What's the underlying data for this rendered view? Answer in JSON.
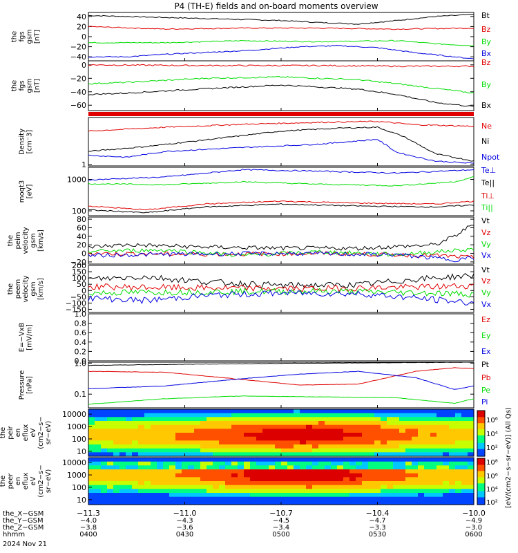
{
  "title": "P4 (TH-E) fields and on-board moments overview",
  "colors": {
    "black": "#000000",
    "red": "#e00000",
    "green": "#00dd00",
    "blue": "#0000e0"
  },
  "chart_data": [
    {
      "type": "line",
      "ylabel": [
        "the",
        "fgs",
        "gsm",
        "[nT]"
      ],
      "ylim": [
        -48,
        48
      ],
      "yticks": [
        "40",
        "20",
        "0",
        "−20",
        "−40"
      ],
      "ytick_values": [
        40,
        20,
        0,
        -20,
        -40
      ],
      "series": [
        {
          "name": "Bt",
          "color": "#000000",
          "points": [
            [
              0,
              42
            ],
            [
              0.1,
              40
            ],
            [
              0.3,
              36
            ],
            [
              0.5,
              32
            ],
            [
              0.6,
              28
            ],
            [
              0.7,
              25
            ],
            [
              0.8,
              32
            ],
            [
              0.9,
              40
            ],
            [
              1,
              44
            ]
          ]
        },
        {
          "name": "Bz",
          "color": "#e00000",
          "points": [
            [
              0,
              20
            ],
            [
              0.2,
              15
            ],
            [
              0.4,
              17
            ],
            [
              0.6,
              17
            ],
            [
              0.8,
              15
            ],
            [
              1,
              17
            ]
          ]
        },
        {
          "name": "By",
          "color": "#00dd00",
          "points": [
            [
              0,
              -12
            ],
            [
              0.2,
              -12
            ],
            [
              0.4,
              -8
            ],
            [
              0.6,
              -10
            ],
            [
              0.8,
              -8
            ],
            [
              0.9,
              -14
            ],
            [
              1,
              -18
            ]
          ]
        },
        {
          "name": "Bx",
          "color": "#0000e0",
          "points": [
            [
              0,
              -40
            ],
            [
              0.1,
              -40
            ],
            [
              0.2,
              -35
            ],
            [
              0.4,
              -28
            ],
            [
              0.55,
              -20
            ],
            [
              0.65,
              -18
            ],
            [
              0.75,
              -22
            ],
            [
              0.85,
              -32
            ],
            [
              0.95,
              -40
            ],
            [
              1,
              -44
            ]
          ]
        }
      ]
    },
    {
      "type": "line",
      "ylabel": [
        "the",
        "fgs",
        "gsm",
        "[nT]"
      ],
      "ylim": [
        -68,
        6
      ],
      "yticks": [
        "0",
        "−20",
        "−40",
        "−60"
      ],
      "ytick_values": [
        0,
        -20,
        -40,
        -60
      ],
      "series": [
        {
          "name": "Bz",
          "color": "#e00000",
          "points": [
            [
              0,
              0
            ],
            [
              0.3,
              -1
            ],
            [
              0.6,
              -1
            ],
            [
              0.8,
              -2
            ],
            [
              1,
              -2
            ]
          ]
        },
        {
          "name": "By",
          "color": "#00dd00",
          "points": [
            [
              0,
              -28
            ],
            [
              0.1,
              -26
            ],
            [
              0.3,
              -20
            ],
            [
              0.5,
              -18
            ],
            [
              0.7,
              -22
            ],
            [
              0.8,
              -28
            ],
            [
              0.9,
              -35
            ],
            [
              1,
              -42
            ]
          ]
        },
        {
          "name": "Bx",
          "color": "#000000",
          "points": [
            [
              0,
              -44
            ],
            [
              0.1,
              -42
            ],
            [
              0.25,
              -37
            ],
            [
              0.5,
              -30
            ],
            [
              0.7,
              -36
            ],
            [
              0.8,
              -44
            ],
            [
              0.9,
              -56
            ],
            [
              1,
              -62
            ]
          ]
        }
      ]
    },
    {
      "type": "line",
      "ylabel": [
        "Density",
        "[cm⁻3]"
      ],
      "ylim": [
        0,
        1
      ],
      "yticks": [
        "1"
      ],
      "ytick_values": [
        0.03
      ],
      "series": [
        {
          "name": "Ne",
          "color": "#e00000",
          "points": [
            [
              0,
              0.72
            ],
            [
              0.2,
              0.8
            ],
            [
              0.4,
              0.86
            ],
            [
              0.6,
              0.9
            ],
            [
              0.75,
              0.92
            ],
            [
              0.85,
              0.85
            ],
            [
              1,
              0.82
            ]
          ]
        },
        {
          "name": "Ni",
          "color": "#000000",
          "points": [
            [
              0,
              0.3
            ],
            [
              0.15,
              0.4
            ],
            [
              0.35,
              0.58
            ],
            [
              0.5,
              0.72
            ],
            [
              0.65,
              0.78
            ],
            [
              0.75,
              0.8
            ],
            [
              0.82,
              0.6
            ],
            [
              0.9,
              0.25
            ],
            [
              1,
              0.1
            ]
          ]
        },
        {
          "name": "Npot",
          "color": "#0000e0",
          "points": [
            [
              0,
              0.22
            ],
            [
              0.1,
              0.18
            ],
            [
              0.2,
              0.3
            ],
            [
              0.4,
              0.38
            ],
            [
              0.6,
              0.45
            ],
            [
              0.75,
              0.55
            ],
            [
              0.8,
              0.28
            ],
            [
              0.9,
              0.1
            ],
            [
              1,
              0.05
            ]
          ]
        }
      ]
    },
    {
      "type": "line",
      "ylabel": [
        "moqt3",
        "[eV]"
      ],
      "ylim": [
        0,
        1
      ],
      "yticks": [
        "1000",
        "100"
      ],
      "ytick_values": [
        0.75,
        0.1
      ],
      "series": [
        {
          "name": "Te⊥",
          "color": "#0000e0",
          "points": [
            [
              0,
              0.74
            ],
            [
              0.2,
              0.8
            ],
            [
              0.4,
              0.95
            ],
            [
              0.6,
              0.92
            ],
            [
              0.8,
              0.88
            ],
            [
              1,
              0.95
            ]
          ]
        },
        {
          "name": "Te||",
          "color": "#000000",
          "points": [
            [
              0,
              0.12
            ],
            [
              0.15,
              0.06
            ],
            [
              0.3,
              0.18
            ],
            [
              0.5,
              0.24
            ],
            [
              0.7,
              0.2
            ],
            [
              0.9,
              0.18
            ],
            [
              1,
              0.22
            ]
          ]
        },
        {
          "name": "Ti⊥",
          "color": "#e00000",
          "points": [
            [
              0,
              0.2
            ],
            [
              0.15,
              0.12
            ],
            [
              0.3,
              0.24
            ],
            [
              0.5,
              0.3
            ],
            [
              0.7,
              0.26
            ],
            [
              0.9,
              0.24
            ],
            [
              1,
              0.3
            ]
          ]
        },
        {
          "name": "Ti||",
          "color": "#00dd00",
          "points": [
            [
              0,
              0.66
            ],
            [
              0.2,
              0.64
            ],
            [
              0.4,
              0.7
            ],
            [
              0.6,
              0.65
            ],
            [
              0.8,
              0.62
            ],
            [
              0.95,
              0.7
            ],
            [
              1,
              0.8
            ]
          ]
        }
      ]
    },
    {
      "type": "line",
      "ylabel": [
        "the",
        "peim",
        "velocity",
        "gsm",
        "[km/s]"
      ],
      "ylim": [
        -25,
        85
      ],
      "yticks": [
        "80",
        "60",
        "40",
        "20",
        "0",
        "−20"
      ],
      "ytick_values": [
        80,
        60,
        40,
        20,
        0,
        -20
      ],
      "series": [
        {
          "name": "Vt",
          "color": "#000000",
          "points": [
            [
              0,
              15
            ],
            [
              0.1,
              20
            ],
            [
              0.3,
              15
            ],
            [
              0.5,
              12
            ],
            [
              0.7,
              12
            ],
            [
              0.9,
              20
            ],
            [
              0.95,
              40
            ],
            [
              1,
              70
            ]
          ]
        },
        {
          "name": "Vz",
          "color": "#e00000",
          "points": [
            [
              0,
              0
            ],
            [
              0.3,
              -2
            ],
            [
              0.6,
              0
            ],
            [
              0.9,
              -5
            ],
            [
              1,
              -10
            ]
          ]
        },
        {
          "name": "Vy",
          "color": "#00dd00",
          "points": [
            [
              0,
              5
            ],
            [
              0.2,
              8
            ],
            [
              0.4,
              -5
            ],
            [
              0.6,
              4
            ],
            [
              0.8,
              -3
            ],
            [
              1,
              10
            ]
          ]
        },
        {
          "name": "Vx",
          "color": "#0000e0",
          "points": [
            [
              0,
              -5
            ],
            [
              0.2,
              -2
            ],
            [
              0.5,
              0
            ],
            [
              0.8,
              -3
            ],
            [
              0.95,
              -15
            ],
            [
              1,
              -10
            ]
          ]
        }
      ]
    },
    {
      "type": "line",
      "ylabel": [
        "the",
        "peem",
        "velocity",
        "gsm",
        "[km/s]"
      ],
      "ylim": [
        -175,
        200
      ],
      "yticks": [
        "200",
        "150",
        "100",
        "50",
        "0",
        "−50",
        "−100",
        "−150"
      ],
      "ytick_values": [
        200,
        150,
        100,
        50,
        0,
        -50,
        -100,
        -150
      ],
      "series": [
        {
          "name": "Vt",
          "color": "#000000",
          "points": [
            [
              0,
              90
            ],
            [
              0.15,
              110
            ],
            [
              0.3,
              70
            ],
            [
              0.5,
              40
            ],
            [
              0.7,
              45
            ],
            [
              0.85,
              90
            ],
            [
              1,
              120
            ]
          ]
        },
        {
          "name": "Vz",
          "color": "#e00000",
          "points": [
            [
              0,
              30
            ],
            [
              0.3,
              20
            ],
            [
              0.6,
              15
            ],
            [
              0.9,
              30
            ],
            [
              1,
              40
            ]
          ]
        },
        {
          "name": "Vy",
          "color": "#00dd00",
          "points": [
            [
              0,
              -20
            ],
            [
              0.3,
              -10
            ],
            [
              0.6,
              -5
            ],
            [
              0.9,
              -20
            ],
            [
              1,
              -30
            ]
          ]
        },
        {
          "name": "Vx",
          "color": "#0000e0",
          "points": [
            [
              0,
              -60
            ],
            [
              0.15,
              -80
            ],
            [
              0.3,
              -40
            ],
            [
              0.5,
              -20
            ],
            [
              0.7,
              -25
            ],
            [
              0.85,
              -60
            ],
            [
              1,
              -100
            ]
          ]
        }
      ]
    },
    {
      "type": "line",
      "ylabel": [
        "E=−VxB",
        "[mV/m]"
      ],
      "ylim": [
        0,
        1
      ],
      "yticks": [
        "1.0",
        "0.8",
        "0.6",
        "0.4",
        "0.2",
        "0.0"
      ],
      "ytick_values": [
        1,
        0.8,
        0.6,
        0.4,
        0.2,
        0
      ],
      "series": [
        {
          "name": "Ez",
          "color": "#e00000",
          "points": []
        },
        {
          "name": "Ey",
          "color": "#00dd00",
          "points": []
        },
        {
          "name": "Ex",
          "color": "#0000e0",
          "points": []
        }
      ]
    },
    {
      "type": "line",
      "ylabel": [
        "Pressure",
        "[nPa]"
      ],
      "ylim": [
        0,
        1
      ],
      "yticks": [
        "1.0",
        "0.1"
      ],
      "ytick_values": [
        0.98,
        0.3
      ],
      "series": [
        {
          "name": "Pt",
          "color": "#000000",
          "points": [
            [
              0,
              0.93
            ],
            [
              0.3,
              0.96
            ],
            [
              0.6,
              0.98
            ],
            [
              0.8,
              0.99
            ],
            [
              1,
              1
            ]
          ]
        },
        {
          "name": "Pb",
          "color": "#e00000",
          "points": [
            [
              0,
              0.8
            ],
            [
              0.2,
              0.78
            ],
            [
              0.4,
              0.62
            ],
            [
              0.55,
              0.5
            ],
            [
              0.7,
              0.52
            ],
            [
              0.85,
              0.8
            ],
            [
              0.95,
              0.88
            ],
            [
              1,
              0.86
            ]
          ]
        },
        {
          "name": "Pe",
          "color": "#00dd00",
          "points": [
            [
              0,
              0.08
            ],
            [
              0.2,
              0.2
            ],
            [
              0.4,
              0.26
            ],
            [
              0.6,
              0.24
            ],
            [
              0.8,
              0.22
            ],
            [
              0.95,
              0.1
            ],
            [
              1,
              0.2
            ]
          ]
        },
        {
          "name": "Pi",
          "color": "#0000e0",
          "points": [
            [
              0,
              0.42
            ],
            [
              0.2,
              0.48
            ],
            [
              0.4,
              0.64
            ],
            [
              0.55,
              0.74
            ],
            [
              0.7,
              0.8
            ],
            [
              0.85,
              0.66
            ],
            [
              0.95,
              0.4
            ],
            [
              1,
              0.48
            ]
          ]
        }
      ]
    },
    {
      "type": "heatmap",
      "ylabel": [
        "the",
        "peir",
        "en",
        "eflux",
        "eV",
        "(cm2−s−",
        "sr−eV)"
      ],
      "yticks": [
        "10000",
        "1000",
        "100",
        "10"
      ],
      "ytick_values": [
        4,
        3,
        2,
        1
      ]
    },
    {
      "type": "heatmap",
      "ylabel": [
        "the",
        "peer",
        "en",
        "eflux",
        "eV",
        "(cm2−s−",
        "sr−eV)"
      ],
      "yticks": [
        "10000",
        "1000",
        "100",
        "10"
      ],
      "ytick_values": [
        4,
        3,
        2,
        1
      ]
    }
  ],
  "colorbar": {
    "ticks": [
      "10⁶",
      "10⁴",
      "10²",
      "10⁸",
      "10⁶",
      "10⁴",
      "10²"
    ],
    "label": "[eV/(cm2−s−sr−eV)] (All Qs)"
  },
  "xaxis": {
    "tick_values": [
      "−11.3",
      "−11.0",
      "−10.7",
      "−10.4",
      "−10.0"
    ],
    "rows": [
      {
        "label": "the_X−GSM",
        "values": [
          "−11.3",
          "−11.0",
          "−10.7",
          "−10.4",
          "−10.0"
        ]
      },
      {
        "label": "the_Y−GSM",
        "values": [
          "−4.0",
          "−4.3",
          "−4.5",
          "−4.7",
          "−4.9"
        ]
      },
      {
        "label": "the_Z−GSM",
        "values": [
          "−3.8",
          "−3.6",
          "−3.4",
          "−3.3",
          "−3.0"
        ]
      },
      {
        "label": "hhmm",
        "values": [
          "0400",
          "0430",
          "0500",
          "0530",
          "0600"
        ]
      }
    ],
    "date": "2024 Nov 21"
  }
}
